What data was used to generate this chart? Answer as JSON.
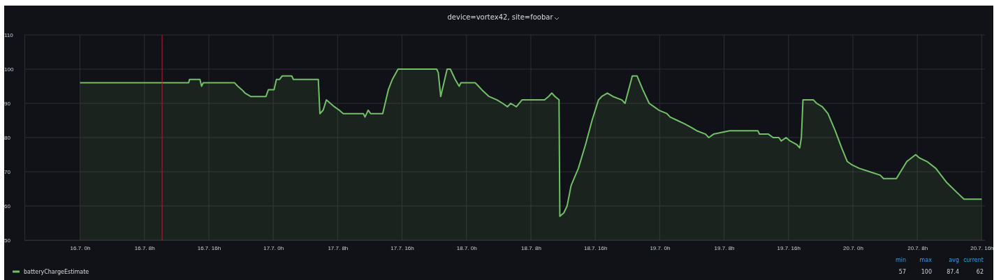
{
  "chart_data": {
    "type": "area",
    "title": "device=vortex42, site=foobar",
    "x": [
      "--07-16T00:00",
      "--07-16T13:30",
      "--07-16T13:36",
      "--07-16T14:54",
      "--07-16T15:06",
      "--07-16T15:18",
      "--07-16T19:12",
      "--07-16T19:36",
      "--07-16T20:06",
      "--07-16T20:30",
      "--07-16T21:12",
      "--07-16T23:06",
      "--07-16T23:24",
      "--07-17T00:06",
      "--07-17T00:24",
      "--07-17T00:48",
      "--07-17T01:06",
      "--07-17T02:18",
      "--07-17T02:30",
      "--07-17T05:36",
      "--07-17T05:48",
      "--07-17T06:12",
      "--07-17T06:36",
      "--07-17T07:06",
      "--07-17T07:36",
      "--07-17T08:12",
      "--07-17T08:42",
      "--07-17T11:12",
      "--07-17T11:24",
      "--07-17T11:48",
      "--07-17T12:06",
      "--07-17T13:36",
      "--07-17T14:18",
      "--07-17T14:48",
      "--07-17T15:30",
      "--07-17T20:18",
      "--07-17T20:30",
      "--07-17T20:48",
      "--07-17T21:36",
      "--07-17T22:00",
      "--07-17T22:36",
      "--07-17T23:06",
      "--07-17T23:18",
      "--07-18T01:06",
      "--07-18T01:30",
      "--07-18T01:54",
      "--07-18T02:48",
      "--07-18T03:48",
      "--07-18T04:30",
      "--07-18T05:06",
      "--07-18T05:30",
      "--07-18T06:12",
      "--07-18T06:54",
      "--07-18T09:42",
      "--07-18T10:12",
      "--07-18T10:36",
      "--07-18T11:00",
      "--07-18T11:30",
      "--07-18T11:36",
      "--07-18T12:06",
      "--07-18T12:30",
      "--07-18T13:00",
      "--07-18T13:54",
      "--07-18T14:48",
      "--07-18T15:36",
      "--07-18T16:24",
      "--07-18T16:48",
      "--07-18T17:30",
      "--07-18T18:12",
      "--07-18T19:18",
      "--07-18T19:42",
      "--07-18T20:36",
      "--07-18T21:12",
      "--07-18T21:54",
      "--07-18T22:42",
      "--07-18T23:18",
      "--07-18T23:54",
      "--07-19T00:54",
      "--07-19T01:18",
      "--07-19T02:12",
      "--07-19T03:06",
      "--07-19T03:54",
      "--07-19T04:36",
      "--07-19T05:42",
      "--07-19T06:06",
      "--07-19T06:42",
      "--07-19T08:42",
      "--07-19T12:12",
      "--07-19T12:24",
      "--07-19T13:30",
      "--07-19T14:06",
      "--07-19T14:48",
      "--07-19T15:06",
      "--07-19T15:42",
      "--07-19T16:12",
      "--07-19T17:00",
      "--07-19T17:24",
      "--07-19T17:36",
      "--07-19T17:48",
      "--07-19T19:06",
      "--07-19T19:30",
      "--07-19T20:12",
      "--07-19T20:54",
      "--07-19T21:48",
      "--07-19T22:36",
      "--07-19T23:18",
      "--07-19T23:54",
      "--07-20T00:48",
      "--07-20T02:06",
      "--07-20T03:24",
      "--07-20T03:48",
      "--07-20T05:24",
      "--07-20T06:42",
      "--07-20T07:48",
      "--07-20T08:18",
      "--07-20T09:12",
      "--07-20T10:18",
      "--07-20T11:36",
      "--07-20T12:54",
      "--07-20T13:48",
      "--07-20T16:00"
    ],
    "series": [
      {
        "name": "batteryChargeEstimate",
        "color": "#73bf69",
        "values": [
          96,
          96,
          97,
          97,
          95,
          96,
          96,
          95,
          94,
          93,
          92,
          92,
          94,
          94,
          97,
          97,
          98,
          98,
          97,
          97,
          87,
          88,
          91,
          90,
          89,
          88,
          87,
          87,
          86,
          88,
          87,
          87,
          94,
          97,
          100,
          100,
          99,
          92,
          100,
          100,
          97,
          95,
          96,
          96,
          95,
          94,
          92,
          91,
          90,
          89,
          90,
          89,
          91,
          91,
          92,
          93,
          92,
          91,
          57,
          58,
          60,
          66,
          71,
          78,
          85,
          91,
          92,
          93,
          92,
          91,
          90,
          98,
          98,
          94,
          90,
          89,
          88,
          87,
          86,
          85,
          84,
          83,
          82,
          81,
          80,
          81,
          82,
          82,
          81,
          81,
          80,
          80,
          79,
          80,
          79,
          78,
          77,
          80,
          91,
          91,
          90,
          89,
          87,
          82,
          77,
          73,
          72,
          71,
          70,
          69,
          68,
          68,
          73,
          75,
          74,
          73,
          71,
          67,
          64,
          62,
          62
        ]
      }
    ],
    "xlim": [
      "--07-15T17:06",
      "--07-20T16:24"
    ],
    "xticks": [
      {
        "value": "--07-16T00:00",
        "label": "16.7. 0h"
      },
      {
        "value": "--07-16T08:00",
        "label": "16.7. 8h"
      },
      {
        "value": "--07-16T16:00",
        "label": "16.7. 16h"
      },
      {
        "value": "--07-17T00:00",
        "label": "17.7. 0h"
      },
      {
        "value": "--07-17T08:00",
        "label": "17.7. 8h"
      },
      {
        "value": "--07-17T16:00",
        "label": "17.7. 16h"
      },
      {
        "value": "--07-18T00:00",
        "label": "18.7. 0h"
      },
      {
        "value": "--07-18T08:00",
        "label": "18.7. 8h"
      },
      {
        "value": "--07-18T16:00",
        "label": "18.7. 16h"
      },
      {
        "value": "--07-19T00:00",
        "label": "19.7. 0h"
      },
      {
        "value": "--07-19T08:00",
        "label": "19.7. 8h"
      },
      {
        "value": "--07-19T16:00",
        "label": "19.7. 16h"
      },
      {
        "value": "--07-20T00:00",
        "label": "20.7. 0h"
      },
      {
        "value": "--07-20T08:00",
        "label": "20.7. 8h"
      },
      {
        "value": "--07-20T16:00",
        "label": "20.7. 16h"
      }
    ],
    "ylim": [
      50,
      110
    ],
    "yticks": [
      50,
      60,
      70,
      80,
      90,
      100,
      110
    ],
    "grid": true,
    "legend": "bottom left",
    "marker": "none",
    "line_style": "solid",
    "ref_lines": [
      {
        "axis": "x",
        "value": "--07-16T10:12",
        "color": "#c4162a"
      }
    ],
    "annotations": [
      "min",
      "max",
      "avg",
      "current",
      "57",
      "100",
      "87.4",
      "62"
    ]
  }
}
